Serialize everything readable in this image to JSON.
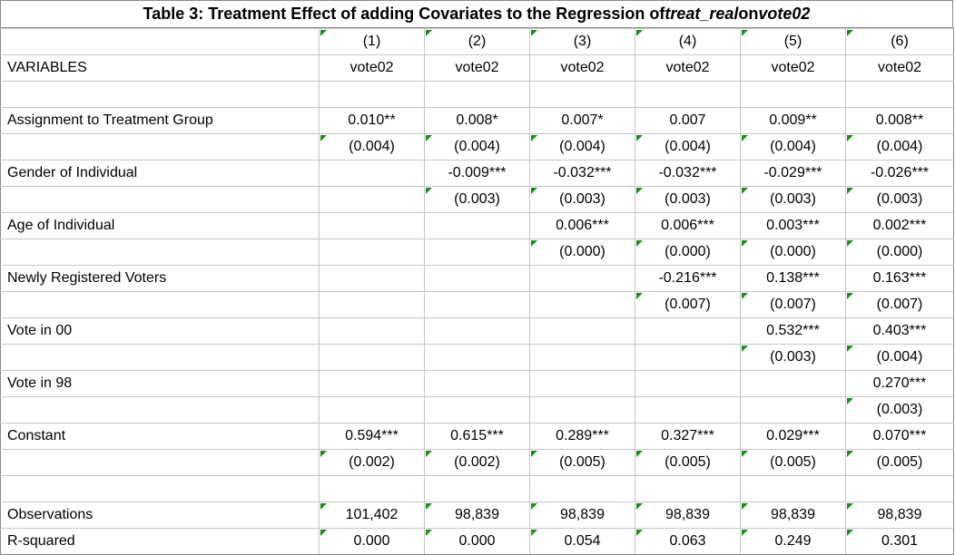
{
  "title": {
    "prefix": "Table 3: Treatment Effect of adding Covariates to the Regression of ",
    "dep_a": "treat_real",
    "mid": " on ",
    "dep_b": "vote02"
  },
  "columns": [
    "(1)",
    "(2)",
    "(3)",
    "(4)",
    "(5)",
    "(6)"
  ],
  "header_label": "VARIABLES",
  "dep_vars": [
    "vote02",
    "vote02",
    "vote02",
    "vote02",
    "vote02",
    "vote02"
  ],
  "rows": [
    {
      "label": "",
      "cells": [
        "",
        "",
        "",
        "",
        "",
        ""
      ]
    },
    {
      "label": "Assignment to Treatment Group",
      "cells": [
        "0.010**",
        "0.008*",
        "0.007*",
        "0.007",
        "0.009**",
        "0.008**"
      ]
    },
    {
      "label": "",
      "cells": [
        "(0.004)",
        "(0.004)",
        "(0.004)",
        "(0.004)",
        "(0.004)",
        "(0.004)"
      ]
    },
    {
      "label": "Gender of Individual",
      "cells": [
        "",
        "-0.009***",
        "-0.032***",
        "-0.032***",
        "-0.029***",
        "-0.026***"
      ]
    },
    {
      "label": "",
      "cells": [
        "",
        "(0.003)",
        "(0.003)",
        "(0.003)",
        "(0.003)",
        "(0.003)"
      ]
    },
    {
      "label": "Age of Individual",
      "cells": [
        "",
        "",
        "0.006***",
        "0.006***",
        "0.003***",
        "0.002***"
      ]
    },
    {
      "label": "",
      "cells": [
        "",
        "",
        "(0.000)",
        "(0.000)",
        "(0.000)",
        "(0.000)"
      ]
    },
    {
      "label": "Newly Registered Voters",
      "cells": [
        "",
        "",
        "",
        "-0.216***",
        "0.138***",
        "0.163***"
      ]
    },
    {
      "label": "",
      "cells": [
        "",
        "",
        "",
        "(0.007)",
        "(0.007)",
        "(0.007)"
      ]
    },
    {
      "label": "Vote in 00",
      "cells": [
        "",
        "",
        "",
        "",
        "0.532***",
        "0.403***"
      ]
    },
    {
      "label": "",
      "cells": [
        "",
        "",
        "",
        "",
        "(0.003)",
        "(0.004)"
      ]
    },
    {
      "label": "Vote in 98",
      "cells": [
        "",
        "",
        "",
        "",
        "",
        "0.270***"
      ]
    },
    {
      "label": "",
      "cells": [
        "",
        "",
        "",
        "",
        "",
        "(0.003)"
      ]
    },
    {
      "label": "Constant",
      "cells": [
        "0.594***",
        "0.615***",
        "0.289***",
        "0.327***",
        "0.029***",
        "0.070***"
      ]
    },
    {
      "label": "",
      "cells": [
        "(0.002)",
        "(0.002)",
        "(0.005)",
        "(0.005)",
        "(0.005)",
        "(0.005)"
      ]
    },
    {
      "label": "",
      "cells": [
        "",
        "",
        "",
        "",
        "",
        ""
      ]
    },
    {
      "label": "Observations",
      "cells": [
        "101,402",
        "98,839",
        "98,839",
        "98,839",
        "98,839",
        "98,839"
      ]
    },
    {
      "label": "R-squared",
      "cells": [
        "0.000",
        "0.000",
        "0.054",
        "0.063",
        "0.249",
        "0.301"
      ]
    }
  ],
  "flag_color": "#1f8a1f"
}
